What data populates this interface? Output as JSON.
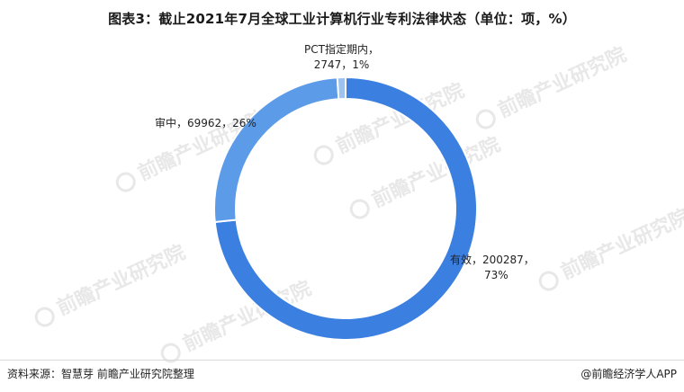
{
  "chart_data": {
    "type": "pie",
    "donut": true,
    "title": "图表3：截止2021年7月全球工业计算机行业专利法律状态（单位：项，%）",
    "slices": [
      {
        "name": "有效",
        "value": 200287,
        "percent": 73,
        "color": "#3b7fe0"
      },
      {
        "name": "审中",
        "value": 69962,
        "percent": 26,
        "color": "#5b9be8"
      },
      {
        "name": "PCT指定期内",
        "value": 2747,
        "percent": 1,
        "color": "#9cc2f0"
      }
    ],
    "labels": [
      {
        "line1": "有效，200287，",
        "line2": "73%"
      },
      {
        "line1": "审中，69962，26%"
      },
      {
        "line1": "PCT指定期内，",
        "line2": "2747，1%"
      }
    ]
  },
  "watermark": "前瞻产业研究院",
  "footer": {
    "source": "资料来源：智慧芽 前瞻产业研究院整理",
    "brand": "@前瞻经济学人APP"
  }
}
